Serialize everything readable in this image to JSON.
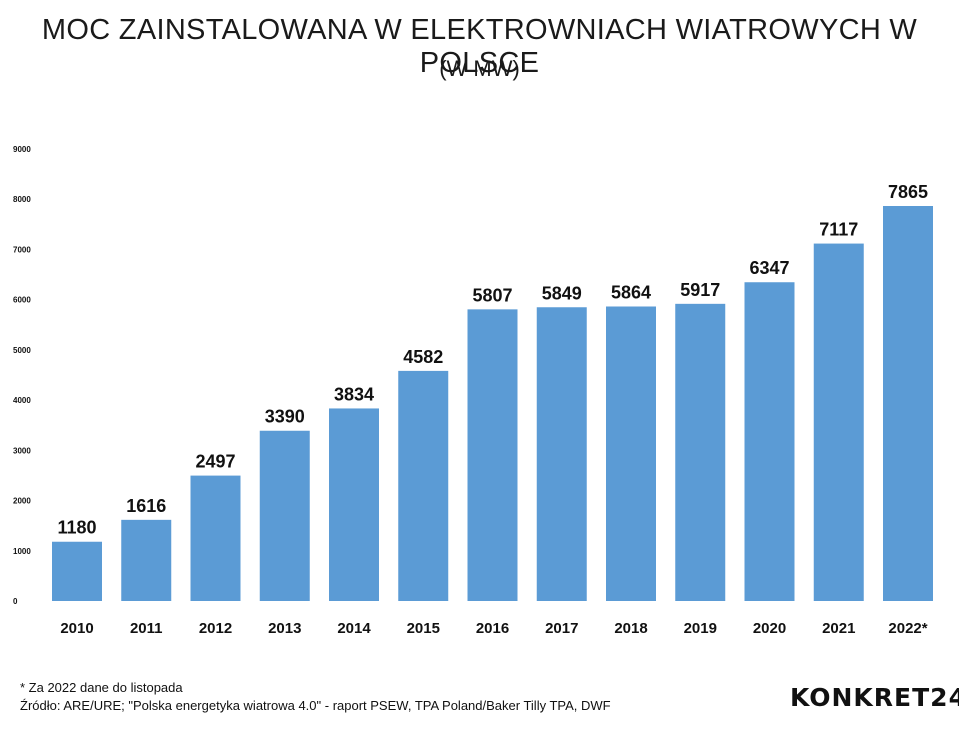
{
  "chart_data": {
    "type": "bar",
    "title": "MOC ZAINSTALOWANA W ELEKTROWNIACH WIATROWYCH W POLSCE",
    "subtitle": "(W MW)",
    "categories": [
      "2010",
      "2011",
      "2012",
      "2013",
      "2014",
      "2015",
      "2016",
      "2017",
      "2018",
      "2019",
      "2020",
      "2021",
      "2022*"
    ],
    "values": [
      1180,
      1616,
      2497,
      3390,
      3834,
      4582,
      5807,
      5849,
      5864,
      5917,
      6347,
      7117,
      7865
    ],
    "ylim": [
      0,
      9000
    ],
    "yticks": [
      0,
      1000,
      2000,
      3000,
      4000,
      5000,
      6000,
      7000,
      8000,
      9000
    ],
    "grid": false,
    "bar_color": "#5b9bd5"
  },
  "footnotes": {
    "note": "* Za 2022 dane do listopada",
    "source": "Źródło: ARE/URE; \"Polska energetyka wiatrowa 4.0\" - raport PSEW, TPA Poland/Baker Tilly TPA, DWF"
  },
  "brand": {
    "logo_text": "KONKRET24"
  }
}
